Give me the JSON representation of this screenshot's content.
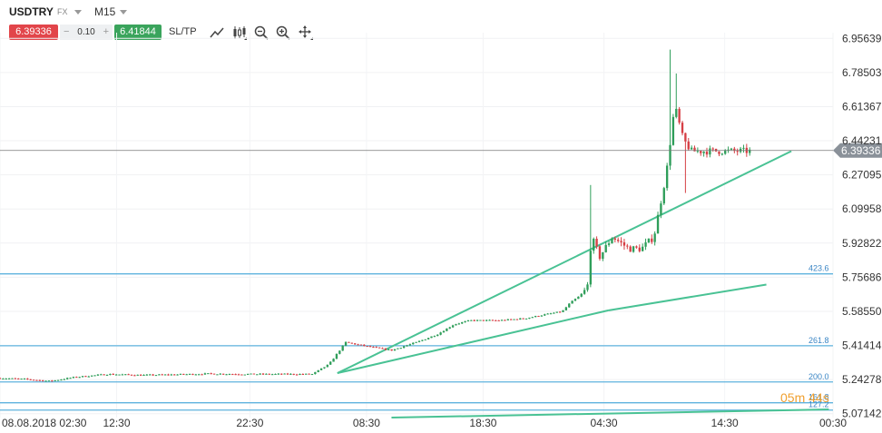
{
  "toolbar": {
    "symbol": "USDTRY",
    "market": "FX",
    "timeframe": "M15",
    "sell_price": "6.39336",
    "spread": "0.10",
    "spread_minus": "−",
    "spread_plus": "+",
    "buy_price": "6.41844",
    "sltp_label": "SL/TP",
    "icons": [
      "line-chart-icon",
      "candles-icon",
      "zoom-out-icon",
      "zoom-in-icon",
      "crosshair-icon"
    ]
  },
  "colors": {
    "up": "#2f9e5a",
    "down": "#d63f45",
    "trend": "#49c294",
    "fib": "#5fb3de",
    "price_tag": "#8a9199",
    "countdown": "#f0a030"
  },
  "chart_data": {
    "type": "candlestick",
    "y_ticks": [
      "6.95639",
      "6.78503",
      "6.61367",
      "6.44231",
      "6.27095",
      "6.09958",
      "5.92822",
      "5.75686",
      "5.58550",
      "5.41414",
      "5.24278",
      "5.07142"
    ],
    "x_ticks": [
      "08.08.2018 02:30",
      "12:30",
      "22:30",
      "08:30",
      "18:30",
      "04:30",
      "14:30",
      "00:30"
    ],
    "ylim": [
      5.052,
      6.985
    ],
    "current_price": "6.39336",
    "countdown": "05m 44s",
    "fib_levels": [
      {
        "label": "423.6",
        "price": 5.7738
      },
      {
        "label": "261.8",
        "price": 5.4127
      },
      {
        "label": "200.0",
        "price": 5.2309
      },
      {
        "label": "161.8",
        "price": 5.1263
      },
      {
        "label": "127.2",
        "price": 5.0897
      }
    ],
    "anchors": [
      {
        "x": 0.0,
        "p": 5.25
      },
      {
        "x": 0.03,
        "p": 5.245
      },
      {
        "x": 0.06,
        "p": 5.235
      },
      {
        "x": 0.09,
        "p": 5.255
      },
      {
        "x": 0.13,
        "p": 5.27
      },
      {
        "x": 0.17,
        "p": 5.265
      },
      {
        "x": 0.21,
        "p": 5.268
      },
      {
        "x": 0.25,
        "p": 5.272
      },
      {
        "x": 0.3,
        "p": 5.27
      },
      {
        "x": 0.34,
        "p": 5.27
      },
      {
        "x": 0.375,
        "p": 5.27
      },
      {
        "x": 0.395,
        "p": 5.32
      },
      {
        "x": 0.415,
        "p": 5.43
      },
      {
        "x": 0.44,
        "p": 5.41
      },
      {
        "x": 0.47,
        "p": 5.39
      },
      {
        "x": 0.5,
        "p": 5.43
      },
      {
        "x": 0.525,
        "p": 5.47
      },
      {
        "x": 0.545,
        "p": 5.52
      },
      {
        "x": 0.565,
        "p": 5.54
      },
      {
        "x": 0.6,
        "p": 5.54
      },
      {
        "x": 0.63,
        "p": 5.55
      },
      {
        "x": 0.655,
        "p": 5.57
      },
      {
        "x": 0.675,
        "p": 5.585
      },
      {
        "x": 0.685,
        "p": 5.63
      },
      {
        "x": 0.695,
        "p": 5.66
      },
      {
        "x": 0.705,
        "p": 5.7
      },
      {
        "x": 0.71,
        "p": 5.96
      },
      {
        "x": 0.72,
        "p": 5.86
      },
      {
        "x": 0.735,
        "p": 5.96
      },
      {
        "x": 0.755,
        "p": 5.9
      },
      {
        "x": 0.77,
        "p": 5.9
      },
      {
        "x": 0.785,
        "p": 5.96
      },
      {
        "x": 0.8,
        "p": 6.28
      },
      {
        "x": 0.81,
        "p": 6.62
      },
      {
        "x": 0.82,
        "p": 6.45
      },
      {
        "x": 0.83,
        "p": 6.39
      }
    ],
    "spikes": [
      {
        "x": 0.71,
        "high": 6.22
      },
      {
        "x": 0.804,
        "high": 6.9
      },
      {
        "x": 0.812,
        "high": 6.78
      },
      {
        "x": 0.822,
        "low": 6.18
      }
    ]
  }
}
